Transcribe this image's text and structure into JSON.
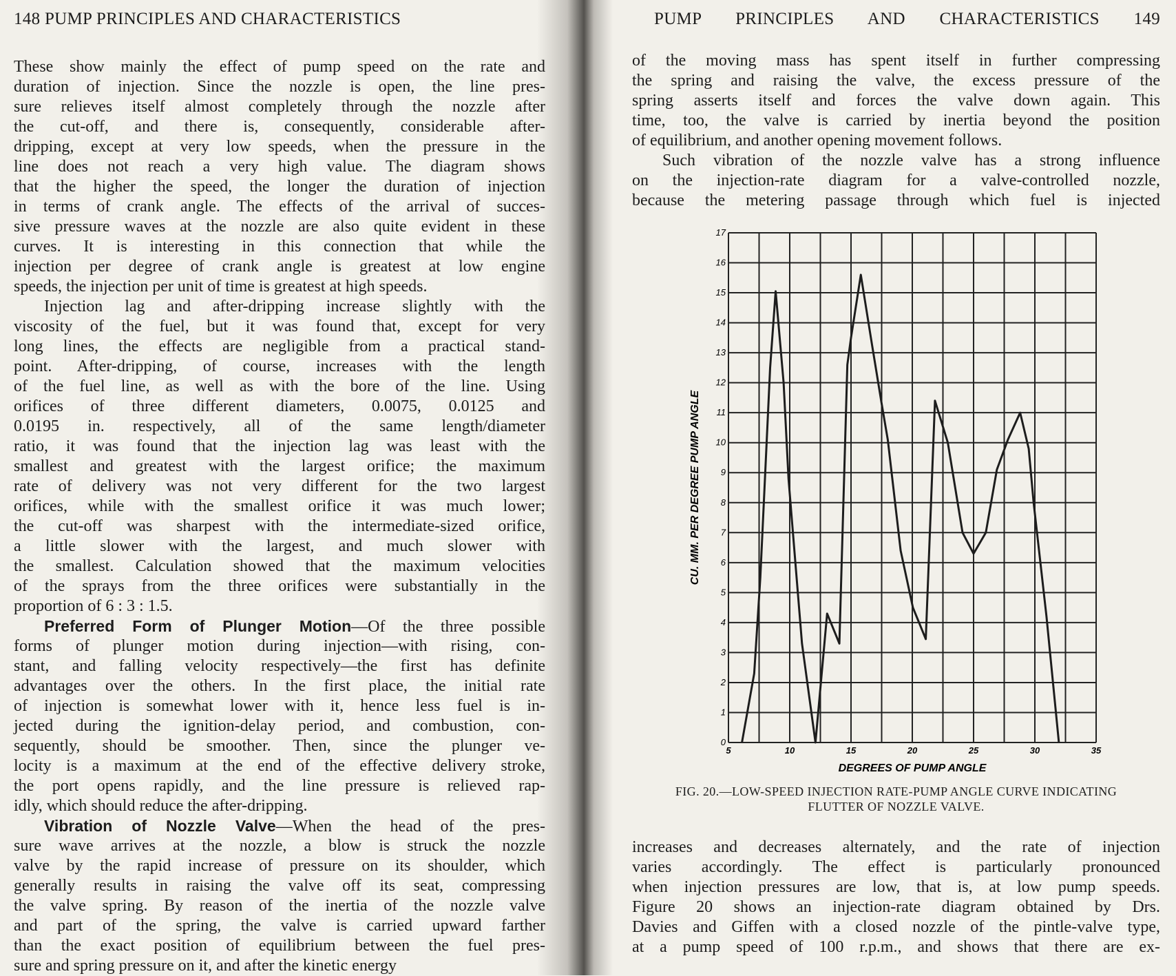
{
  "left_page": {
    "header": "148 PUMP PRINCIPLES AND CHARACTERISTICS",
    "lines": [
      "These show mainly the effect of pump speed on the rate and",
      "duration of injection. Since the nozzle is open, the line pres-",
      "sure relieves itself almost completely through the nozzle after",
      "the cut-off, and there is, consequently, considerable after-",
      "dripping, except at very low speeds, when the pressure in the",
      "line does not reach a very high value. The diagram shows",
      "that the higher the speed, the longer the duration of injection",
      "in terms of crank angle. The effects of the arrival of succes-",
      "sive pressure waves at the nozzle are also quite evident in these",
      "curves. It is interesting in this connection that while the",
      "injection per degree of crank angle is greatest at low engine",
      "speeds, the injection per unit of time is greatest at high speeds.",
      "Injection lag and after-dripping increase slightly with the",
      "viscosity of the fuel, but it was found that, except for very",
      "long lines, the effects are negligible from a practical stand-",
      "point. After-dripping, of course, increases with the length",
      "of the fuel line, as well as with the bore of the line. Using",
      "orifices of three different diameters, 0.0075, 0.0125 and",
      "0.0195 in. respectively, all of the same length/diameter",
      "ratio, it was found that the injection lag was least with the",
      "smallest and greatest with the largest orifice; the maximum",
      "rate of delivery was not very different for the two largest",
      "orifices, while with the smallest orifice it was much lower;",
      "the cut-off was sharpest with the intermediate-sized orifice,",
      "a little slower with the largest, and much slower with",
      "the smallest. Calculation showed that the maximum velocities",
      "of the sprays from the three orifices were substantially in the",
      "proportion of 6 : 3 : 1.5.",
      "",
      "forms of plunger motion during injection—with rising, con-",
      "stant, and falling velocity respectively—the first has definite",
      "advantages over the others. In the first place, the initial rate",
      "of injection is somewhat lower with it, hence less fuel is in-",
      "jected during the ignition-delay period, and combustion, con-",
      "sequently, should be smoother. Then, since the plunger ve-",
      "locity is a maximum at the end of the effective delivery stroke,",
      "the port opens rapidly, and the line pressure is relieved rap-",
      "idly, which should reduce the after-dripping.",
      "",
      "sure wave arrives at the nozzle, a blow is struck the nozzle",
      "valve by the rapid increase of pressure on its shoulder, which",
      "generally results in raising the valve off its seat, compressing",
      "the valve spring. By reason of the inertia of the nozzle valve",
      "and part of the spring, the valve is carried upward farther",
      "than the exact position of equilibrium between the fuel pres-",
      "sure and spring pressure on it, and after the kinetic energy"
    ],
    "heading1": "Preferred Form of Plunger Motion",
    "heading1_rest": "—Of the three possible",
    "heading2": "Vibration of Nozzle Valve",
    "heading2_rest": "—When the head of the pres-"
  },
  "right_page": {
    "header": "PUMP PRINCIPLES AND CHARACTERISTICS 149",
    "top_lines": [
      "of the moving mass has spent itself in further compressing",
      "the spring and raising the valve, the excess pressure of the",
      "spring asserts itself and forces the valve down again. This",
      "time, too, the valve is carried by inertia beyond the position",
      "of equilibrium, and another opening movement follows.",
      "Such vibration of the nozzle valve has a strong influence",
      "on the injection-rate diagram for a valve-controlled nozzle,",
      "because the metering passage through which fuel is injected"
    ],
    "caption_line1": "FIG. 20.—LOW-SPEED INJECTION RATE-PUMP ANGLE CURVE INDICATING",
    "caption_line2": "FLUTTER OF NOZZLE VALVE.",
    "bottom_lines": [
      "increases and decreases alternately, and the rate of injection",
      "varies accordingly. The effect is particularly pronounced",
      "when injection pressures are low, that is, at low pump speeds.",
      "Figure 20 shows an injection-rate diagram obtained by Drs.",
      "Davies and Giffen with a closed nozzle of the pintle-valve type,",
      "at a pump speed of 100 r.p.m., and shows that there are ex-"
    ]
  },
  "chart_data": {
    "type": "line",
    "xlabel": "DEGREES OF PUMP ANGLE",
    "ylabel": "CU. MM. PER DEGREE PUMP ANGLE",
    "xlim": [
      5,
      35
    ],
    "ylim": [
      0,
      17
    ],
    "xticks": [
      "5",
      "10",
      "15",
      "20",
      "25",
      "30",
      "35"
    ],
    "yticks": [
      "0",
      "1",
      "2",
      "3",
      "4",
      "5",
      "6",
      "7",
      "8",
      "9",
      "10",
      "11",
      "12",
      "13",
      "14",
      "15",
      "16",
      "17"
    ],
    "grid": true,
    "x_grid_step": 2.5,
    "line_color": "#1d1d1d",
    "x": [
      6.1,
      7.1,
      7.6,
      8.4,
      8.85,
      9.5,
      9.9,
      11.0,
      12.1,
      13.05,
      14.05,
      14.7,
      15.0,
      15.8,
      16.7,
      17.5,
      18.0,
      19.05,
      20.05,
      21.1,
      21.85,
      22.9,
      24.1,
      25.0,
      26.0,
      26.9,
      27.8,
      28.8,
      29.5,
      29.9,
      30.95,
      31.96
    ],
    "y": [
      0,
      2.3,
      5.5,
      12.5,
      15.05,
      12.0,
      8.8,
      3.3,
      0,
      4.3,
      3.3,
      12.6,
      13.5,
      15.6,
      13.3,
      11.3,
      10.1,
      6.4,
      4.5,
      3.45,
      11.4,
      10.0,
      7.0,
      6.3,
      7.0,
      9.1,
      10.1,
      11.0,
      9.8,
      8.0,
      4.2,
      0
    ]
  }
}
